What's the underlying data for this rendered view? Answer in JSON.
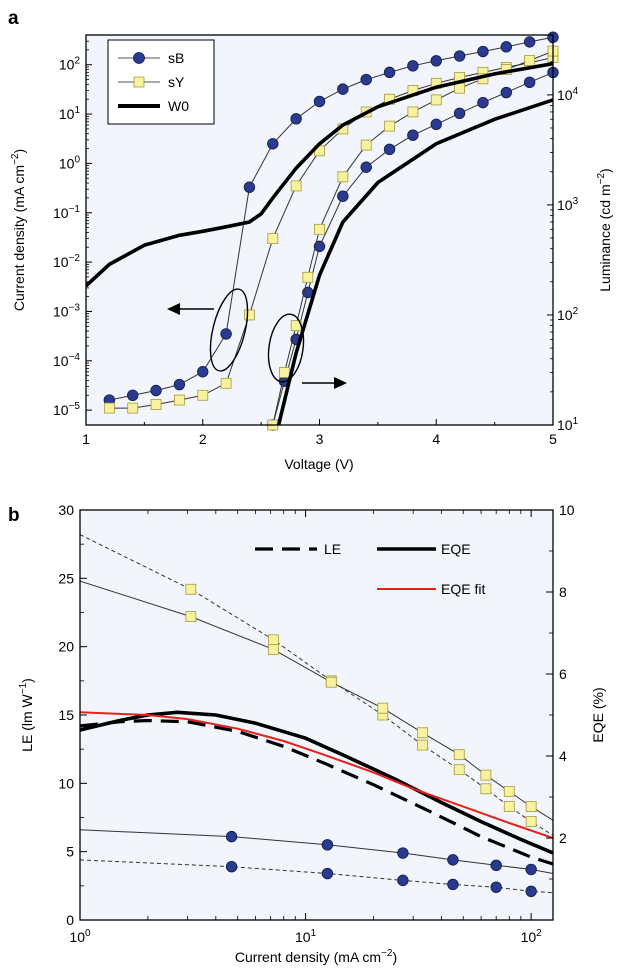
{
  "chart_data": [
    {
      "panel": "a",
      "type": "line",
      "xlabel": "Voltage (V)",
      "ylabel": "Current density (mA cm",
      "ylabel_sup": "−2",
      "ylabel_close": ")",
      "y2label": "Luminance (cd m",
      "y2label_sup": "−2",
      "y2label_close": ")",
      "xlim": [
        1,
        5
      ],
      "ylim": [
        5e-06,
        400
      ],
      "y2lim": [
        10,
        35000
      ],
      "yscale": "log",
      "y2scale": "log",
      "xticks": [
        "1",
        "2",
        "3",
        "4",
        "5"
      ],
      "yticks": [
        {
          "m": "10",
          "e": "−5"
        },
        {
          "m": "10",
          "e": "−4"
        },
        {
          "m": "10",
          "e": "−3"
        },
        {
          "m": "10",
          "e": "−2"
        },
        {
          "m": "10",
          "e": "−1"
        },
        {
          "m": "10",
          "e": "0"
        },
        {
          "m": "10",
          "e": "1"
        },
        {
          "m": "10",
          "e": "2"
        }
      ],
      "y2ticks": [
        {
          "m": "10",
          "e": "1"
        },
        {
          "m": "10",
          "e": "2"
        },
        {
          "m": "10",
          "e": "3"
        },
        {
          "m": "10",
          "e": "4"
        }
      ],
      "legend": {
        "position": "top-left",
        "entries": [
          "sB",
          "sY",
          "W0"
        ]
      },
      "series": [
        {
          "name": "sB",
          "axis": "left",
          "marker": "circle",
          "color": "#2a3b8f",
          "x": [
            1.2,
            1.4,
            1.6,
            1.8,
            2.0,
            2.2,
            2.4,
            2.6,
            2.8,
            3.0,
            3.2,
            3.4,
            3.6,
            3.8,
            4.0,
            4.2,
            4.4,
            4.6,
            4.8,
            5.0
          ],
          "y": [
            1.6e-05,
            2e-05,
            2.5e-05,
            3.3e-05,
            6e-05,
            0.00035,
            0.33,
            2.5,
            8.0,
            18,
            32,
            50,
            70,
            95,
            120,
            150,
            185,
            230,
            290,
            360
          ]
        },
        {
          "name": "sB",
          "axis": "right",
          "marker": "circle",
          "color": "#2a3b8f",
          "x": [
            2.6,
            2.7,
            2.8,
            2.9,
            3.0,
            3.2,
            3.4,
            3.6,
            3.8,
            4.0,
            4.2,
            4.4,
            4.6,
            4.8,
            5.0
          ],
          "y": [
            10,
            25,
            60,
            160,
            420,
            1200,
            2200,
            3200,
            4300,
            5400,
            6800,
            8500,
            10500,
            13000,
            16000
          ]
        },
        {
          "name": "sY",
          "axis": "left",
          "marker": "square",
          "color": "#f7f2a0",
          "x": [
            1.2,
            1.4,
            1.6,
            1.8,
            2.0,
            2.2,
            2.4,
            2.6,
            2.8,
            3.0,
            3.2,
            3.4,
            3.6,
            3.8,
            4.0,
            4.2,
            4.4,
            4.6,
            4.8,
            5.0
          ],
          "y": [
            1.1e-05,
            1.1e-05,
            1.3e-05,
            1.6e-05,
            2e-05,
            3.5e-05,
            0.00085,
            0.03,
            0.35,
            1.8,
            5.0,
            11,
            20,
            30,
            42,
            55,
            70,
            88,
            110,
            140
          ]
        },
        {
          "name": "sY",
          "axis": "right",
          "marker": "square",
          "color": "#f7f2a0",
          "x": [
            2.6,
            2.7,
            2.8,
            2.9,
            3.0,
            3.2,
            3.4,
            3.6,
            3.8,
            4.0,
            4.2,
            4.4,
            4.6,
            4.8,
            5.0
          ],
          "y": [
            10,
            30,
            80,
            220,
            600,
            1800,
            3500,
            5200,
            7000,
            9000,
            11500,
            14000,
            17000,
            20500,
            25000
          ]
        },
        {
          "name": "W0",
          "axis": "left",
          "marker": "none",
          "color": "#000000",
          "x": [
            1.0,
            1.2,
            1.5,
            1.8,
            2.0,
            2.2,
            2.4,
            2.5,
            2.6,
            2.8,
            3.0,
            3.2,
            3.5,
            4.0,
            4.5,
            5.0
          ],
          "y": [
            0.0033,
            0.009,
            0.022,
            0.035,
            0.042,
            0.052,
            0.065,
            0.095,
            0.2,
            0.8,
            2.5,
            6.0,
            14,
            35,
            65,
            105
          ]
        },
        {
          "name": "W0",
          "axis": "right",
          "marker": "none",
          "color": "#000000",
          "x": [
            2.65,
            2.8,
            3.0,
            3.2,
            3.5,
            4.0,
            4.5,
            5.0
          ],
          "y": [
            10,
            45,
            230,
            700,
            1600,
            3600,
            6000,
            9000
          ]
        }
      ],
      "annotations": [
        {
          "type": "ellipse-arrow",
          "points_to": "left axis"
        },
        {
          "type": "ellipse-arrow",
          "points_to": "right axis"
        }
      ]
    },
    {
      "panel": "b",
      "type": "line",
      "xlabel": "Current density (mA cm",
      "xlabel_sup": "−2",
      "xlabel_close": ")",
      "ylabel": "LE (lm W",
      "ylabel_sup": "−1",
      "ylabel_close": ")",
      "y2label": "EQE (%)",
      "xscale": "log",
      "xlim": [
        1,
        125
      ],
      "ylim": [
        0,
        30
      ],
      "y2lim": [
        0,
        10
      ],
      "xticks": [
        {
          "m": "10",
          "e": "0"
        },
        {
          "m": "10",
          "e": "1"
        },
        {
          "m": "10",
          "e": "2"
        }
      ],
      "yticks": [
        "0",
        "5",
        "10",
        "15",
        "20",
        "25",
        "30"
      ],
      "y2ticks": [
        "2",
        "4",
        "6",
        "8",
        "10"
      ],
      "legend": {
        "position": "top-right",
        "entries": [
          "LE",
          "EQE",
          "EQE fit"
        ]
      },
      "series": [
        {
          "name": "sY LE",
          "axis": "left",
          "marker": "square",
          "style": "dashed",
          "color": "#f7f2a0",
          "x": [
            1,
            3.1,
            7.2,
            13,
            22,
            33,
            48,
            63,
            80,
            100,
            125
          ],
          "y": [
            28.2,
            24.2,
            20.5,
            17.5,
            15.0,
            12.8,
            11.0,
            9.6,
            8.3,
            7.2,
            6.2
          ]
        },
        {
          "name": "sY EQE",
          "axis": "left",
          "marker": "square",
          "style": "solid",
          "color": "#f7f2a0",
          "x": [
            1,
            3.1,
            7.2,
            13,
            22,
            33,
            48,
            63,
            80,
            100,
            125
          ],
          "y": [
            24.8,
            22.2,
            19.8,
            17.4,
            15.5,
            13.7,
            12.1,
            10.6,
            9.4,
            8.3,
            7.3
          ]
        },
        {
          "name": "EQE",
          "axis": "left",
          "marker": "none",
          "style": "thick-solid",
          "color": "#000000",
          "x": [
            1,
            1.5,
            2,
            2.7,
            4,
            6,
            10,
            15,
            25,
            40,
            60,
            90,
            125
          ],
          "y": [
            13.9,
            14.6,
            15.0,
            15.2,
            15.0,
            14.4,
            13.3,
            12.0,
            10.3,
            8.6,
            7.2,
            5.9,
            4.9
          ]
        },
        {
          "name": "EQE fit",
          "axis": "left",
          "marker": "none",
          "style": "solid",
          "color": "#e8201a",
          "x": [
            1,
            2,
            3,
            5,
            8,
            12,
            20,
            30,
            50,
            80,
            125
          ],
          "y": [
            15.2,
            15.0,
            14.7,
            14.0,
            13.1,
            12.1,
            10.8,
            9.6,
            8.3,
            7.1,
            6.0
          ]
        },
        {
          "name": "LE",
          "axis": "left",
          "marker": "none",
          "style": "thick-dashed",
          "color": "#000000",
          "x": [
            1,
            1.5,
            2,
            3,
            5,
            8,
            12,
            20,
            35,
            60,
            100,
            125
          ],
          "y": [
            14.2,
            14.5,
            14.6,
            14.5,
            13.8,
            12.7,
            11.5,
            9.9,
            8.0,
            6.1,
            4.6,
            4.1
          ]
        },
        {
          "name": "sB EQE",
          "axis": "left",
          "marker": "circle",
          "style": "solid",
          "color": "#2a3b8f",
          "x": [
            1,
            4.7,
            12.5,
            27,
            45,
            70,
            100,
            125
          ],
          "y": [
            6.6,
            6.1,
            5.5,
            4.9,
            4.4,
            4.0,
            3.7,
            3.4
          ]
        },
        {
          "name": "sB LE",
          "axis": "left",
          "marker": "circle",
          "style": "dashed",
          "color": "#2a3b8f",
          "x": [
            1,
            4.7,
            12.5,
            27,
            45,
            70,
            100,
            125
          ],
          "y": [
            4.4,
            3.9,
            3.4,
            2.9,
            2.6,
            2.4,
            2.1,
            2.0
          ]
        }
      ]
    }
  ]
}
